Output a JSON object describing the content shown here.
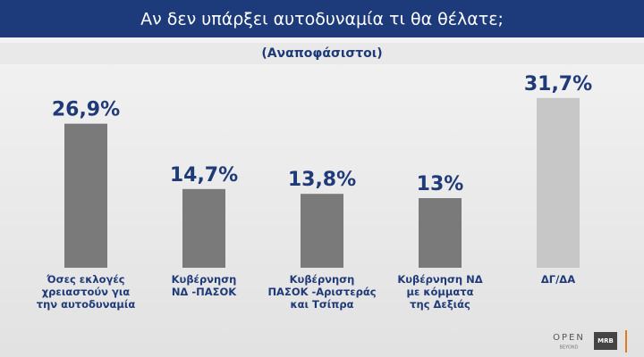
{
  "chart_data": {
    "type": "bar",
    "title": "Αν δεν υπάρξει αυτοδυναμία τι θα θέλατε;",
    "subtitle": "(Αναποφάσιστοι)",
    "categories": [
      [
        "Όσες εκλογές",
        "χρειαστούν για",
        "την αυτοδυναμία"
      ],
      [
        "Κυβέρνηση",
        "ΝΔ -ΠΑΣΟΚ"
      ],
      [
        "Κυβέρνηση",
        "ΠΑΣΟΚ -Αριστεράς",
        "και Τσίπρα"
      ],
      [
        "Κυβέρνηση ΝΔ",
        "με κόμματα",
        "της Δεξιάς"
      ],
      [
        "ΔΓ/ΔΑ"
      ]
    ],
    "values": [
      26.9,
      14.7,
      13.8,
      13,
      31.7
    ],
    "value_labels": [
      "26,9%",
      "14,7%",
      "13,8%",
      "13%",
      "31,7%"
    ],
    "colors": [
      "#7a7a7a",
      "#7a7a7a",
      "#7a7a7a",
      "#7a7a7a",
      "#c7c7c7"
    ],
    "ylim": [
      0,
      35
    ]
  },
  "logos": [
    "OPEN",
    "BEYOND",
    "MRB"
  ]
}
